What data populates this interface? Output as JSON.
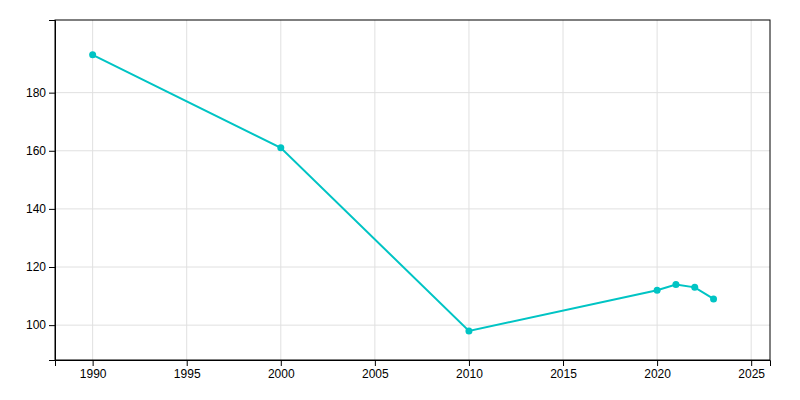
{
  "chart_data": {
    "type": "line",
    "x": [
      1990,
      2000,
      2010,
      2020,
      2021,
      2022,
      2023
    ],
    "values": [
      193,
      161,
      98,
      112,
      114,
      113,
      109
    ],
    "color": "#00C4C4",
    "marker": "circle",
    "xlim": [
      1988,
      2026
    ],
    "ylim": [
      88,
      205
    ],
    "xticks": [
      1990,
      1995,
      2000,
      2005,
      2010,
      2015,
      2020,
      2025
    ],
    "yticks": [
      100,
      120,
      140,
      160,
      180
    ],
    "grid": true
  }
}
